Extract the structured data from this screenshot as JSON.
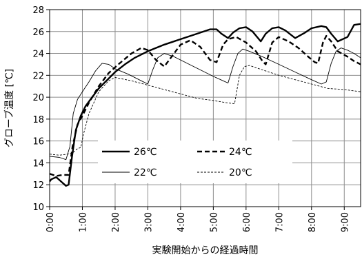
{
  "chart_data": {
    "type": "line",
    "title": "",
    "xlabel": "実験開始からの経過時間",
    "ylabel": "グローブ温度 [℃]",
    "xlim": [
      0,
      9.5
    ],
    "ylim": [
      10,
      28
    ],
    "y_ticks": [
      10,
      12,
      14,
      16,
      18,
      20,
      22,
      24,
      26,
      28
    ],
    "y_tick_labels": [
      "10",
      "12",
      "14",
      "16",
      "18",
      "20",
      "22",
      "24",
      "26",
      "28"
    ],
    "x_ticks": [
      0,
      1,
      2,
      3,
      4,
      5,
      6,
      7,
      8,
      9
    ],
    "x_tick_labels": [
      "0:00",
      "1:00",
      "2:00",
      "3:00",
      "4:00",
      "5:00",
      "6:00",
      "7:00",
      "8:00",
      "9:00"
    ],
    "grid": true,
    "legend_position": "lower-left-center",
    "series": [
      {
        "name": "26℃",
        "color": "#000000",
        "style": "solid-thick",
        "x": [
          0,
          0.05,
          0.2,
          0.35,
          0.5,
          0.58,
          0.68,
          0.8,
          0.95,
          1.1,
          1.3,
          1.5,
          1.8,
          2.0,
          2.3,
          2.6,
          3.0,
          3.5,
          4.0,
          4.5,
          4.9,
          5.1,
          5.25,
          5.45,
          5.6,
          5.8,
          6.0,
          6.2,
          6.45,
          6.6,
          6.8,
          7.0,
          7.2,
          7.5,
          7.8,
          8.0,
          8.3,
          8.45,
          8.6,
          8.8,
          9.1,
          9.3,
          9.5
        ],
        "y": [
          12.3,
          12.5,
          12.7,
          12.3,
          11.9,
          12.0,
          14.5,
          17.0,
          18.3,
          19.2,
          20.0,
          20.8,
          21.7,
          22.3,
          23.0,
          23.6,
          24.2,
          24.8,
          25.3,
          25.8,
          26.2,
          26.2,
          25.8,
          25.4,
          25.9,
          26.3,
          26.4,
          26.0,
          25.1,
          25.8,
          26.3,
          26.4,
          26.1,
          25.4,
          25.9,
          26.3,
          26.5,
          26.4,
          25.8,
          25.1,
          25.5,
          26.6,
          26.7
        ]
      },
      {
        "name": "24℃",
        "color": "#000000",
        "style": "dashed-thick",
        "x": [
          0,
          0.2,
          0.4,
          0.58,
          0.7,
          0.85,
          1.0,
          1.2,
          1.5,
          1.8,
          2.1,
          2.5,
          2.8,
          3.0,
          3.25,
          3.5,
          3.8,
          4.0,
          4.3,
          4.6,
          4.9,
          5.1,
          5.3,
          5.45,
          5.7,
          6.0,
          6.3,
          6.5,
          6.6,
          6.8,
          7.0,
          7.3,
          7.6,
          7.9,
          8.1,
          8.2,
          8.35,
          8.45,
          8.6,
          8.8,
          9.1,
          9.3,
          9.5
        ],
        "y": [
          13.0,
          12.8,
          12.9,
          12.9,
          15.5,
          17.5,
          18.3,
          19.5,
          21.0,
          22.2,
          23.0,
          24.0,
          24.5,
          24.3,
          23.4,
          22.8,
          24.0,
          24.8,
          25.2,
          24.6,
          23.4,
          23.2,
          24.8,
          25.3,
          25.5,
          25.0,
          24.2,
          23.3,
          23.0,
          25.0,
          25.5,
          25.1,
          24.5,
          23.7,
          23.2,
          23.1,
          25.0,
          25.6,
          25.1,
          24.2,
          23.7,
          23.3,
          23.0
        ]
      },
      {
        "name": "22℃",
        "color": "#000000",
        "style": "solid-thin",
        "x": [
          0,
          0.3,
          0.5,
          0.62,
          0.72,
          0.85,
          1.0,
          1.2,
          1.4,
          1.6,
          1.8,
          2.0,
          2.4,
          2.8,
          3.0,
          3.15,
          3.3,
          3.5,
          3.8,
          4.2,
          4.6,
          5.0,
          5.3,
          5.45,
          5.6,
          5.75,
          5.9,
          6.1,
          6.5,
          7.0,
          7.5,
          8.0,
          8.3,
          8.45,
          8.6,
          8.75,
          8.9,
          9.1,
          9.3,
          9.5
        ],
        "y": [
          14.6,
          14.5,
          14.3,
          15.5,
          18.5,
          19.8,
          20.5,
          21.4,
          22.4,
          23.1,
          23.0,
          22.6,
          22.1,
          21.5,
          21.2,
          22.5,
          23.6,
          24.0,
          23.7,
          23.1,
          22.5,
          21.9,
          21.5,
          21.3,
          22.8,
          24.0,
          24.4,
          24.2,
          23.7,
          23.0,
          22.3,
          21.6,
          21.2,
          21.4,
          23.1,
          24.2,
          24.5,
          24.3,
          24.0,
          23.6
        ]
      },
      {
        "name": "20℃",
        "color": "#000000",
        "style": "dotted-thin",
        "x": [
          0,
          0.3,
          0.55,
          0.7,
          0.85,
          0.95,
          1.05,
          1.2,
          1.5,
          1.8,
          2.0,
          2.5,
          3.0,
          3.5,
          4.0,
          4.5,
          5.0,
          5.4,
          5.65,
          5.8,
          5.95,
          6.1,
          6.4,
          7.0,
          7.5,
          8.0,
          8.5,
          9.0,
          9.5
        ],
        "y": [
          14.8,
          14.7,
          14.8,
          14.9,
          15.3,
          15.4,
          16.8,
          18.5,
          20.5,
          21.5,
          21.8,
          21.5,
          21.1,
          20.7,
          20.3,
          19.9,
          19.7,
          19.5,
          19.4,
          22.0,
          22.8,
          22.9,
          22.6,
          22.0,
          21.6,
          21.2,
          20.8,
          20.7,
          20.5
        ]
      }
    ]
  }
}
